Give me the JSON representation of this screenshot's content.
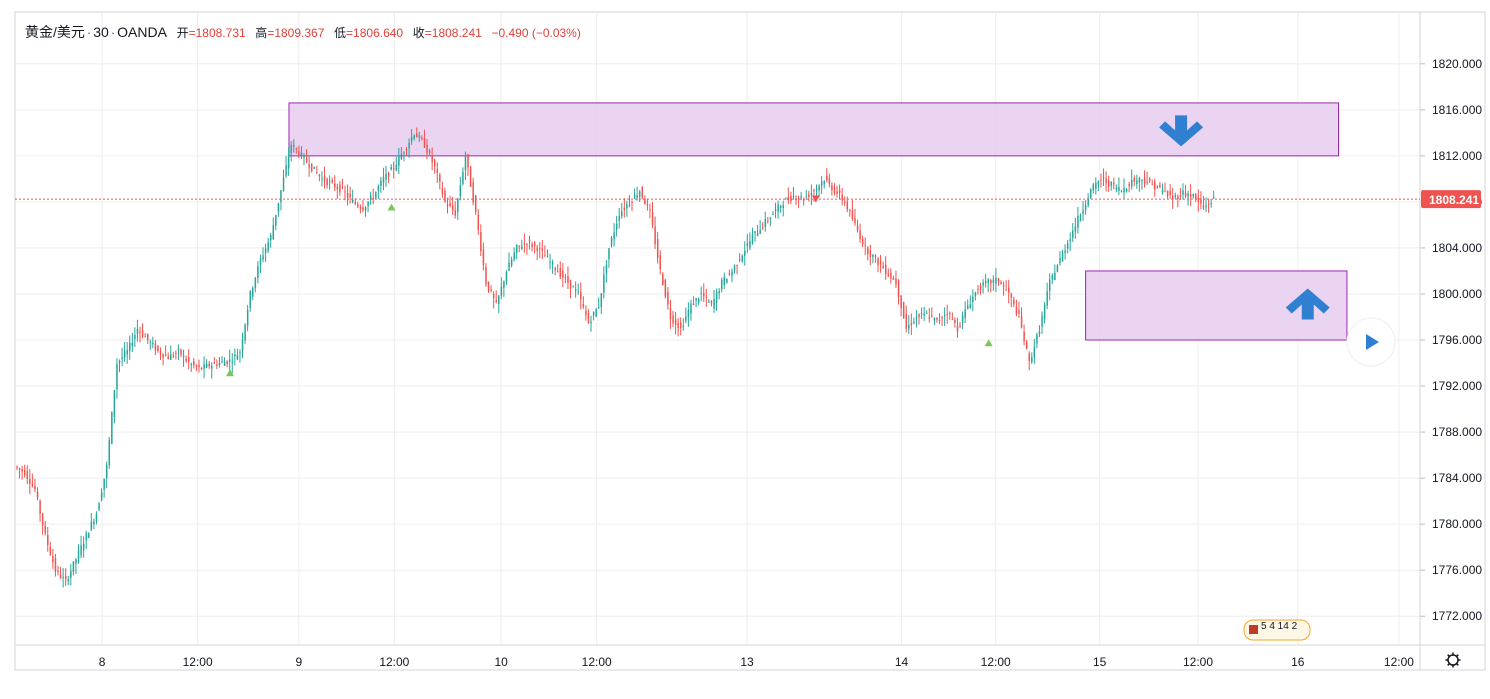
{
  "legend": {
    "symbol": "黄金/美元",
    "interval": "30",
    "source": "OANDA",
    "open_label": "开",
    "open": "1808.731",
    "high_label": "高",
    "high": "1809.367",
    "low_label": "低",
    "low": "1806.640",
    "close_label": "收",
    "close": "1808.241",
    "change": "−0.490 (−0.03%)"
  },
  "price_tag": "1808.241",
  "events_badge": {
    "text": "5 4 14 2"
  },
  "colors": {
    "up": "#26a69a",
    "down": "#ef5350",
    "zone_fill": "#e6cdf0",
    "zone_border": "#9c27b0",
    "arrow": "#2f80d1",
    "price_line": "#ef5350",
    "grid": "#eeeeee",
    "axis_text": "#131722",
    "marker": "#7cc55b"
  },
  "chart_data": {
    "type": "candlestick",
    "yticks": [
      "1820.000",
      "1816.000",
      "1812.000",
      "1808.000",
      "1804.000",
      "1800.000",
      "1796.000",
      "1792.000",
      "1788.000",
      "1784.000",
      "1780.000",
      "1776.000",
      "1772.000"
    ],
    "ylim": [
      1769.5,
      1824.5
    ],
    "xticks": [
      {
        "label": "8",
        "pos": 0.062
      },
      {
        "label": "12:00",
        "pos": 0.13
      },
      {
        "label": "9",
        "pos": 0.202
      },
      {
        "label": "12:00",
        "pos": 0.27
      },
      {
        "label": "10",
        "pos": 0.346
      },
      {
        "label": "12:00",
        "pos": 0.414
      },
      {
        "label": "13",
        "pos": 0.521
      },
      {
        "label": "14",
        "pos": 0.631
      },
      {
        "label": "12:00",
        "pos": 0.698
      },
      {
        "label": "15",
        "pos": 0.772
      },
      {
        "label": "12:00",
        "pos": 0.842
      },
      {
        "label": "16",
        "pos": 0.913
      },
      {
        "label": "12:00",
        "pos": 0.985
      }
    ],
    "last_price": 1808.241,
    "zones": [
      {
        "x0": 0.195,
        "x1": 0.942,
        "y_low": 1812.0,
        "y_high": 1816.6,
        "arrow": "down"
      },
      {
        "x0": 0.762,
        "x1": 0.948,
        "y_low": 1796.0,
        "y_high": 1802.0,
        "arrow": "up"
      }
    ],
    "markers": [
      {
        "x": 0.153,
        "y": 1793.2,
        "dir": "up"
      },
      {
        "x": 0.268,
        "y": 1807.6,
        "dir": "up"
      },
      {
        "x": 0.693,
        "y": 1795.8,
        "dir": "up"
      },
      {
        "x": 0.57,
        "y": 1808.3,
        "dir": "down"
      }
    ],
    "series_start": 0.0,
    "series_end": 0.855,
    "closes": [
      1785,
      1784.5,
      1783,
      1779,
      1776,
      1775,
      1777,
      1779,
      1781,
      1785,
      1794,
      1795,
      1797,
      1796,
      1795,
      1794.5,
      1795,
      1794,
      1793.5,
      1793.8,
      1794,
      1794.2,
      1795,
      1800,
      1803,
      1805,
      1809,
      1813,
      1812,
      1811,
      1810,
      1809.5,
      1809,
      1808,
      1807.5,
      1808.5,
      1810,
      1811,
      1812.5,
      1814,
      1813,
      1811,
      1808,
      1807,
      1812,
      1807,
      1801,
      1799,
      1802,
      1804,
      1804.5,
      1804,
      1803,
      1802,
      1801,
      1800,
      1797.5,
      1799,
      1804,
      1807,
      1808,
      1809,
      1807,
      1802,
      1798,
      1797,
      1799,
      1800,
      1799,
      1801,
      1802,
      1803.5,
      1805,
      1806,
      1807,
      1808,
      1808.5,
      1808.3,
      1809,
      1810,
      1809,
      1808,
      1806,
      1804,
      1803,
      1802,
      1801,
      1797,
      1798,
      1798.2,
      1797.6,
      1798.5,
      1797,
      1799,
      1800.5,
      1801,
      1801.2,
      1800,
      1798,
      1794,
      1797,
      1801,
      1803,
      1805,
      1807,
      1809,
      1810,
      1809.5,
      1809,
      1809.8,
      1810,
      1809.5,
      1809,
      1808.3,
      1808.8,
      1808.5,
      1807.5,
      1808.241
    ]
  }
}
